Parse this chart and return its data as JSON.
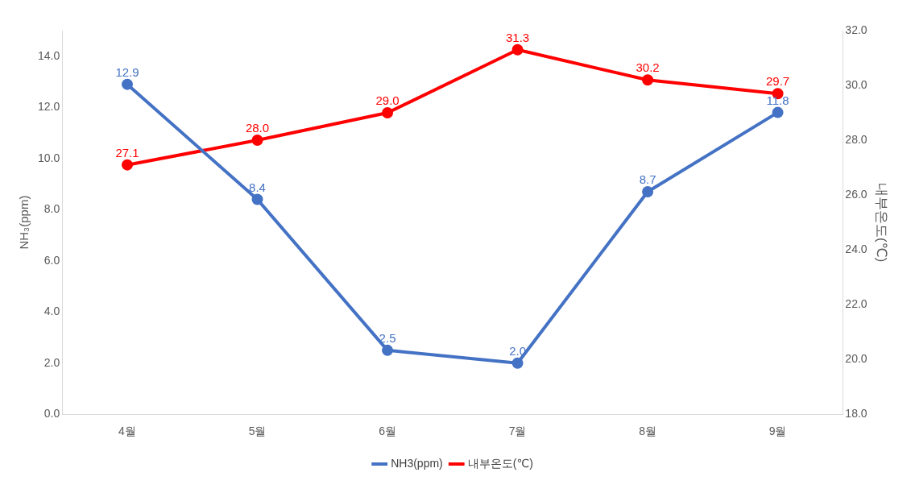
{
  "chart_data": {
    "type": "line",
    "ylabel": "NH₃(ppm)",
    "y2label": "내부온도(℃)",
    "categories": [
      "4월",
      "5월",
      "6월",
      "7월",
      "8월",
      "9월"
    ],
    "series": [
      {
        "name": "NH3(ppm)",
        "color": "#4472c4",
        "values": [
          12.9,
          8.4,
          2.5,
          2.0,
          8.7,
          11.8
        ],
        "value_labels": [
          "12.9",
          "8.4",
          "2.5",
          "2.0",
          "8.7",
          "11.8"
        ]
      },
      {
        "name": "내부온도(℃)",
        "color": "#ff0000",
        "axis": "y2",
        "values": [
          27.1,
          28.0,
          29.0,
          31.3,
          30.2,
          29.7
        ],
        "value_labels": [
          "27.1",
          "28.0",
          "29.0",
          "31.3",
          "30.2",
          "29.7"
        ]
      }
    ],
    "ylim": [
      0,
      15
    ],
    "yticks": [
      {
        "value": 0,
        "label": "0.0"
      },
      {
        "value": 2,
        "label": "2.0"
      },
      {
        "value": 4,
        "label": "4.0"
      },
      {
        "value": 6,
        "label": "6.0"
      },
      {
        "value": 8,
        "label": "8.0"
      },
      {
        "value": 10,
        "label": "10.0"
      },
      {
        "value": 12,
        "label": "12.0"
      },
      {
        "value": 14,
        "label": "14.0"
      }
    ],
    "y2lim": [
      18,
      32
    ],
    "y2ticks": [
      {
        "value": 18,
        "label": "18.0"
      },
      {
        "value": 20,
        "label": "20.0"
      },
      {
        "value": 22,
        "label": "22.0"
      },
      {
        "value": 24,
        "label": "24.0"
      },
      {
        "value": 26,
        "label": "26.0"
      },
      {
        "value": 28,
        "label": "28.0"
      },
      {
        "value": 30,
        "label": "30.0"
      },
      {
        "value": 32,
        "label": "32.0"
      }
    ],
    "legend": "bottom",
    "marker": "circle",
    "line_style": "solid",
    "grid": false
  }
}
